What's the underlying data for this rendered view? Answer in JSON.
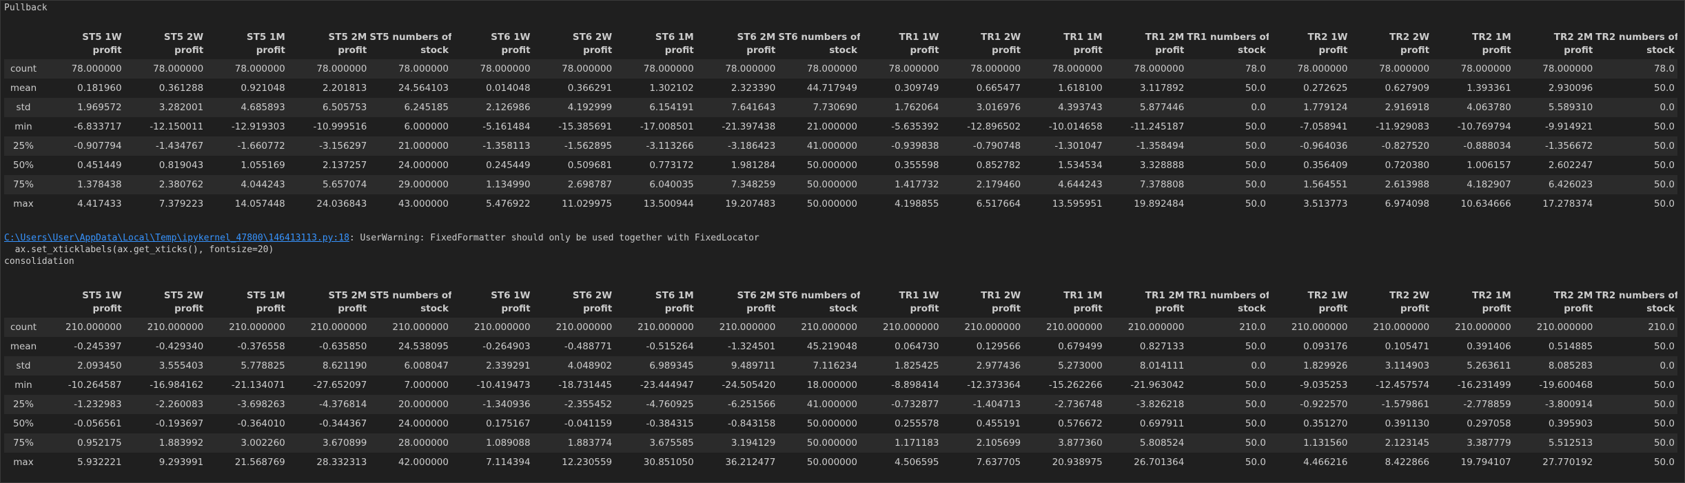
{
  "columns": [
    [
      "ST5 1W",
      "profit"
    ],
    [
      "ST5 2W",
      "profit"
    ],
    [
      "ST5 1M",
      "profit"
    ],
    [
      "ST5 2M",
      "profit"
    ],
    [
      "ST5 numbers of",
      "stock"
    ],
    [
      "ST6 1W",
      "profit"
    ],
    [
      "ST6 2W",
      "profit"
    ],
    [
      "ST6 1M",
      "profit"
    ],
    [
      "ST6 2M",
      "profit"
    ],
    [
      "ST6 numbers of",
      "stock"
    ],
    [
      "TR1 1W",
      "profit"
    ],
    [
      "TR1 2W",
      "profit"
    ],
    [
      "TR1 1M",
      "profit"
    ],
    [
      "TR1 2M",
      "profit"
    ],
    [
      "TR1 numbers of",
      "stock"
    ],
    [
      "TR2 1W",
      "profit"
    ],
    [
      "TR2 2W",
      "profit"
    ],
    [
      "TR2 1M",
      "profit"
    ],
    [
      "TR2 2M",
      "profit"
    ],
    [
      "TR2 numbers of",
      "stock"
    ]
  ],
  "section1": {
    "label": "Pullback",
    "rows": [
      {
        "stat": "count",
        "values": [
          "78.000000",
          "78.000000",
          "78.000000",
          "78.000000",
          "78.000000",
          "78.000000",
          "78.000000",
          "78.000000",
          "78.000000",
          "78.000000",
          "78.000000",
          "78.000000",
          "78.000000",
          "78.000000",
          "78.0",
          "78.000000",
          "78.000000",
          "78.000000",
          "78.000000",
          "78.0"
        ]
      },
      {
        "stat": "mean",
        "values": [
          "0.181960",
          "0.361288",
          "0.921048",
          "2.201813",
          "24.564103",
          "0.014048",
          "0.366291",
          "1.302102",
          "2.323390",
          "44.717949",
          "0.309749",
          "0.665477",
          "1.618100",
          "3.117892",
          "50.0",
          "0.272625",
          "0.627909",
          "1.393361",
          "2.930096",
          "50.0"
        ]
      },
      {
        "stat": "std",
        "values": [
          "1.969572",
          "3.282001",
          "4.685893",
          "6.505753",
          "6.245185",
          "2.126986",
          "4.192999",
          "6.154191",
          "7.641643",
          "7.730690",
          "1.762064",
          "3.016976",
          "4.393743",
          "5.877446",
          "0.0",
          "1.779124",
          "2.916918",
          "4.063780",
          "5.589310",
          "0.0"
        ]
      },
      {
        "stat": "min",
        "values": [
          "-6.833717",
          "-12.150011",
          "-12.919303",
          "-10.999516",
          "6.000000",
          "-5.161484",
          "-15.385691",
          "-17.008501",
          "-21.397438",
          "21.000000",
          "-5.635392",
          "-12.896502",
          "-10.014658",
          "-11.245187",
          "50.0",
          "-7.058941",
          "-11.929083",
          "-10.769794",
          "-9.914921",
          "50.0"
        ]
      },
      {
        "stat": "25%",
        "values": [
          "-0.907794",
          "-1.434767",
          "-1.660772",
          "-3.156297",
          "21.000000",
          "-1.358113",
          "-1.562895",
          "-3.113266",
          "-3.186423",
          "41.000000",
          "-0.939838",
          "-0.790748",
          "-1.301047",
          "-1.358494",
          "50.0",
          "-0.964036",
          "-0.827520",
          "-0.888034",
          "-1.356672",
          "50.0"
        ]
      },
      {
        "stat": "50%",
        "values": [
          "0.451449",
          "0.819043",
          "1.055169",
          "2.137257",
          "24.000000",
          "0.245449",
          "0.509681",
          "0.773172",
          "1.981284",
          "50.000000",
          "0.355598",
          "0.852782",
          "1.534534",
          "3.328888",
          "50.0",
          "0.356409",
          "0.720380",
          "1.006157",
          "2.602247",
          "50.0"
        ]
      },
      {
        "stat": "75%",
        "values": [
          "1.378438",
          "2.380762",
          "4.044243",
          "5.657074",
          "29.000000",
          "1.134990",
          "2.698787",
          "6.040035",
          "7.348259",
          "50.000000",
          "1.417732",
          "2.179460",
          "4.644243",
          "7.378808",
          "50.0",
          "1.564551",
          "2.613988",
          "4.182907",
          "6.426023",
          "50.0"
        ]
      },
      {
        "stat": "max",
        "values": [
          "4.417433",
          "7.379223",
          "14.057448",
          "24.036843",
          "43.000000",
          "5.476922",
          "11.029975",
          "13.500944",
          "19.207483",
          "50.000000",
          "4.198855",
          "6.517664",
          "13.595951",
          "19.892484",
          "50.0",
          "3.513773",
          "6.974098",
          "10.634666",
          "17.278374",
          "50.0"
        ]
      }
    ]
  },
  "warning": {
    "path": "C:\\Users\\User\\AppData\\Local\\Temp\\ipykernel_47800\\146413113.py:18",
    "message": ": UserWarning: FixedFormatter should only be used together with FixedLocator",
    "code": "  ax.set_xticklabels(ax.get_xticks(), fontsize=20)"
  },
  "section2": {
    "label": "consolidation",
    "rows": [
      {
        "stat": "count",
        "values": [
          "210.000000",
          "210.000000",
          "210.000000",
          "210.000000",
          "210.000000",
          "210.000000",
          "210.000000",
          "210.000000",
          "210.000000",
          "210.000000",
          "210.000000",
          "210.000000",
          "210.000000",
          "210.000000",
          "210.0",
          "210.000000",
          "210.000000",
          "210.000000",
          "210.000000",
          "210.0"
        ]
      },
      {
        "stat": "mean",
        "values": [
          "-0.245397",
          "-0.429340",
          "-0.376558",
          "-0.635850",
          "24.538095",
          "-0.264903",
          "-0.488771",
          "-0.515264",
          "-1.324501",
          "45.219048",
          "0.064730",
          "0.129566",
          "0.679499",
          "0.827133",
          "50.0",
          "0.093176",
          "0.105471",
          "0.391406",
          "0.514885",
          "50.0"
        ]
      },
      {
        "stat": "std",
        "values": [
          "2.093450",
          "3.555403",
          "5.778825",
          "8.621190",
          "6.008047",
          "2.339291",
          "4.048902",
          "6.989345",
          "9.489711",
          "7.116234",
          "1.825425",
          "2.977436",
          "5.273000",
          "8.014111",
          "0.0",
          "1.829926",
          "3.114903",
          "5.263611",
          "8.085283",
          "0.0"
        ]
      },
      {
        "stat": "min",
        "values": [
          "-10.264587",
          "-16.984162",
          "-21.134071",
          "-27.652097",
          "7.000000",
          "-10.419473",
          "-18.731445",
          "-23.444947",
          "-24.505420",
          "18.000000",
          "-8.898414",
          "-12.373364",
          "-15.262266",
          "-21.963042",
          "50.0",
          "-9.035253",
          "-12.457574",
          "-16.231499",
          "-19.600468",
          "50.0"
        ]
      },
      {
        "stat": "25%",
        "values": [
          "-1.232983",
          "-2.260083",
          "-3.698263",
          "-4.376814",
          "20.000000",
          "-1.340936",
          "-2.355452",
          "-4.760925",
          "-6.251566",
          "41.000000",
          "-0.732877",
          "-1.404713",
          "-2.736748",
          "-3.826218",
          "50.0",
          "-0.922570",
          "-1.579861",
          "-2.778859",
          "-3.800914",
          "50.0"
        ]
      },
      {
        "stat": "50%",
        "values": [
          "-0.056561",
          "-0.193697",
          "-0.364010",
          "-0.344367",
          "24.000000",
          "0.175167",
          "-0.041159",
          "-0.384315",
          "-0.843158",
          "50.000000",
          "0.255578",
          "0.455191",
          "0.576672",
          "0.697911",
          "50.0",
          "0.351270",
          "0.391130",
          "0.297058",
          "0.395903",
          "50.0"
        ]
      },
      {
        "stat": "75%",
        "values": [
          "0.952175",
          "1.883992",
          "3.002260",
          "3.670899",
          "28.000000",
          "1.089088",
          "1.883774",
          "3.675585",
          "3.194129",
          "50.000000",
          "1.171183",
          "2.105699",
          "3.877360",
          "5.808524",
          "50.0",
          "1.131560",
          "2.123145",
          "3.387779",
          "5.512513",
          "50.0"
        ]
      },
      {
        "stat": "max",
        "values": [
          "5.932221",
          "9.293991",
          "21.568769",
          "28.332313",
          "42.000000",
          "7.114394",
          "12.230559",
          "30.851050",
          "36.212477",
          "50.000000",
          "4.506595",
          "7.637705",
          "20.938975",
          "26.701364",
          "50.0",
          "4.466216",
          "8.422866",
          "19.794107",
          "27.770192",
          "50.0"
        ]
      }
    ]
  }
}
